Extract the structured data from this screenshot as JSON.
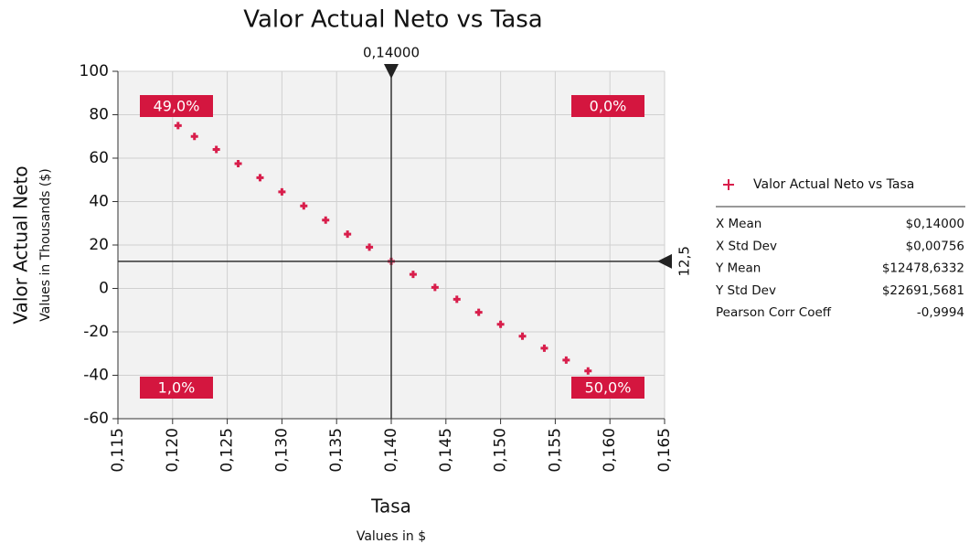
{
  "chart_data": {
    "type": "scatter",
    "title": "Valor Actual Neto vs Tasa",
    "ylabel": "Valor Actual Neto",
    "ysubtitle": "Values in Thousands ($)",
    "xlabel": "Tasa",
    "xsubtitle": "Values in $",
    "xlim": [
      0.115,
      0.165
    ],
    "xticks": [
      {
        "value": 0.115,
        "label": "0,115"
      },
      {
        "value": 0.12,
        "label": "0,120"
      },
      {
        "value": 0.125,
        "label": "0,125"
      },
      {
        "value": 0.13,
        "label": "0,130"
      },
      {
        "value": 0.135,
        "label": "0,135"
      },
      {
        "value": 0.14,
        "label": "0,140"
      },
      {
        "value": 0.145,
        "label": "0,145"
      },
      {
        "value": 0.15,
        "label": "0,150"
      },
      {
        "value": 0.155,
        "label": "0,155"
      },
      {
        "value": 0.16,
        "label": "0,160"
      },
      {
        "value": 0.165,
        "label": "0,165"
      }
    ],
    "ylim": [
      -60,
      100
    ],
    "yticks": [
      -60,
      -40,
      -20,
      0,
      20,
      40,
      60,
      80,
      100
    ],
    "grid": true,
    "series": [
      {
        "name": "Valor Actual Neto vs Tasa",
        "color": "#d81e4b",
        "x": [
          0.1205,
          0.122,
          0.124,
          0.126,
          0.128,
          0.13,
          0.132,
          0.134,
          0.136,
          0.138,
          0.14,
          0.142,
          0.144,
          0.146,
          0.148,
          0.15,
          0.152,
          0.154,
          0.156,
          0.158
        ],
        "values": [
          75,
          70,
          64,
          57.5,
          51,
          44.5,
          38,
          31.5,
          25,
          19,
          12.5,
          6.5,
          0.5,
          -5,
          -11,
          -16.5,
          -22,
          -27.5,
          -33,
          -38
        ]
      }
    ],
    "crosshair": {
      "x": {
        "value": 0.14,
        "label": "0,14000"
      },
      "y": {
        "value": 12.5,
        "label": "12,5"
      }
    },
    "quadrants": [
      {
        "corner": "top-left",
        "value": 49,
        "value_label": "49,0%"
      },
      {
        "corner": "top-right",
        "value": 0,
        "value_label": "0,0%"
      },
      {
        "corner": "bottom-left",
        "value": 1,
        "value_label": "1,0%"
      },
      {
        "corner": "bottom-right",
        "value": 50,
        "value_label": "50,0%"
      }
    ],
    "stats": [
      {
        "label": "X Mean",
        "value": "$0,14000"
      },
      {
        "label": "X Std Dev",
        "value": "$0,00756"
      },
      {
        "label": "Y Mean",
        "value": "$12478,6332"
      },
      {
        "label": "Y Std Dev",
        "value": "$22691,5681"
      },
      {
        "label": "Pearson Corr Coeff",
        "value": "-0,9994"
      }
    ]
  }
}
